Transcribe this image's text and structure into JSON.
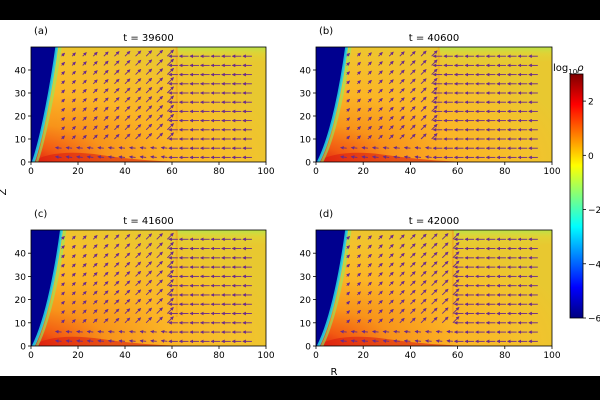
{
  "figure": {
    "shared_xlabel": "R",
    "shared_ylabel": "Z",
    "colorbar": {
      "label": "log",
      "label_sub": "10",
      "label_var": "ρ",
      "ticks": [
        "2",
        "0",
        "−2",
        "−4",
        "−6"
      ],
      "tick_values": [
        2,
        0,
        -2,
        -4,
        -6
      ],
      "range": [
        -6,
        3
      ],
      "colormap": [
        "#00007f",
        "#0000ff",
        "#007fff",
        "#00ffff",
        "#7fff7f",
        "#ffff00",
        "#ff7f00",
        "#ff0000",
        "#7f0000"
      ]
    },
    "arrow_color": "#6a2a8a"
  },
  "chart_data": [
    {
      "type": "heatmap",
      "panel_label": "(a)",
      "title": "t = 39600",
      "xlim": [
        0,
        100
      ],
      "ylim": [
        0,
        50
      ],
      "xticks": [
        "0",
        "20",
        "40",
        "60",
        "80",
        "100"
      ],
      "yticks": [
        "0",
        "10",
        "20",
        "30",
        "40"
      ],
      "front_R": 62,
      "inner_edge_R": 10
    },
    {
      "type": "heatmap",
      "panel_label": "(b)",
      "title": "t = 40600",
      "xlim": [
        0,
        100
      ],
      "ylim": [
        0,
        50
      ],
      "xticks": [
        "0",
        "20",
        "40",
        "60",
        "80",
        "100"
      ],
      "yticks": [
        "0",
        "10",
        "20",
        "30",
        "40"
      ],
      "front_R": 52,
      "inner_edge_R": 12
    },
    {
      "type": "heatmap",
      "panel_label": "(c)",
      "title": "t = 41600",
      "xlim": [
        0,
        100
      ],
      "ylim": [
        0,
        50
      ],
      "xticks": [
        "0",
        "20",
        "40",
        "60",
        "80",
        "100"
      ],
      "yticks": [
        "0",
        "10",
        "20",
        "30",
        "40"
      ],
      "front_R": 62,
      "inner_edge_R": 12
    },
    {
      "type": "heatmap",
      "panel_label": "(d)",
      "title": "t = 42000",
      "xlim": [
        0,
        100
      ],
      "ylim": [
        0,
        50
      ],
      "xticks": [
        "0",
        "20",
        "40",
        "60",
        "80",
        "100"
      ],
      "yticks": [
        "0",
        "10",
        "20",
        "30",
        "40"
      ],
      "front_R": 58,
      "inner_edge_R": 12
    }
  ]
}
